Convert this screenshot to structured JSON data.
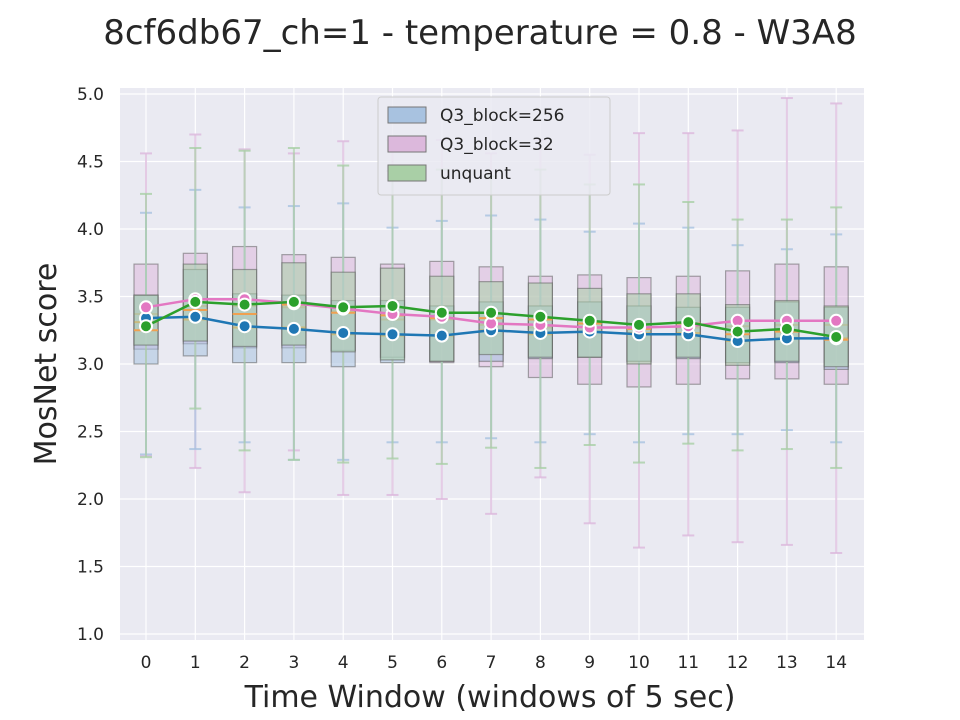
{
  "chart_data": {
    "type": "box",
    "title": "8cf6db67_ch=1 - temperature = 0.8 - W3A8",
    "xlabel": "Time Window (windows of 5 sec)",
    "ylabel": "MosNet score",
    "ylim": [
      1.0,
      5.0
    ],
    "yticks": [
      "1.0",
      "1.5",
      "2.0",
      "2.5",
      "3.0",
      "3.5",
      "4.0",
      "4.5",
      "5.0"
    ],
    "categories": [
      "0",
      "1",
      "2",
      "3",
      "4",
      "5",
      "6",
      "7",
      "8",
      "9",
      "10",
      "11",
      "12",
      "13",
      "14"
    ],
    "grid": true,
    "legend_position": "top-center",
    "series": [
      {
        "name": "Q3_block=256",
        "color": "#1f77b4",
        "box_color": "#a8c2e0",
        "means": [
          3.34,
          3.35,
          3.28,
          3.26,
          3.23,
          3.22,
          3.21,
          3.25,
          3.23,
          3.24,
          3.22,
          3.22,
          3.17,
          3.19,
          3.19
        ],
        "q1": [
          3.0,
          3.06,
          3.01,
          3.01,
          2.98,
          3.01,
          3.02,
          3.02,
          3.04,
          3.05,
          3.02,
          3.04,
          3.01,
          3.01,
          2.96
        ],
        "median": [
          3.31,
          3.33,
          3.27,
          3.27,
          3.22,
          3.21,
          3.21,
          3.25,
          3.22,
          3.24,
          3.23,
          3.23,
          3.17,
          3.19,
          3.19
        ],
        "q3": [
          3.51,
          3.7,
          3.52,
          3.51,
          3.47,
          3.47,
          3.43,
          3.46,
          3.43,
          3.46,
          3.43,
          3.42,
          3.42,
          3.46,
          3.42
        ],
        "whisker_low": [
          2.33,
          2.37,
          2.42,
          2.29,
          2.29,
          2.42,
          2.42,
          2.45,
          2.42,
          2.48,
          2.42,
          2.48,
          2.48,
          2.51,
          2.42
        ],
        "whisker_high": [
          4.12,
          4.29,
          4.16,
          4.17,
          4.19,
          4.01,
          4.06,
          4.1,
          4.07,
          3.98,
          4.04,
          4.01,
          3.88,
          3.85,
          3.96
        ]
      },
      {
        "name": "Q3_block=32",
        "color": "#e377c2",
        "box_color": "#dcb8dc",
        "means": [
          3.42,
          3.48,
          3.48,
          3.45,
          3.41,
          3.37,
          3.35,
          3.3,
          3.29,
          3.27,
          3.27,
          3.28,
          3.32,
          3.32,
          3.32
        ],
        "q1": [
          3.11,
          3.15,
          3.12,
          3.12,
          3.1,
          3.05,
          3.01,
          2.98,
          2.9,
          2.85,
          2.83,
          2.85,
          2.89,
          2.89,
          2.85
        ],
        "median": [
          3.37,
          3.43,
          3.43,
          3.42,
          3.39,
          3.33,
          3.33,
          3.29,
          3.27,
          3.24,
          3.26,
          3.27,
          3.28,
          3.29,
          3.29
        ],
        "q3": [
          3.74,
          3.82,
          3.87,
          3.81,
          3.79,
          3.74,
          3.76,
          3.72,
          3.65,
          3.66,
          3.64,
          3.65,
          3.69,
          3.74,
          3.72
        ],
        "whisker_low": [
          2.32,
          2.23,
          2.05,
          2.36,
          2.03,
          2.03,
          2.0,
          1.89,
          2.16,
          1.82,
          1.64,
          1.73,
          1.68,
          1.66,
          1.6
        ],
        "whisker_high": [
          4.56,
          4.7,
          4.59,
          4.56,
          4.65,
          4.66,
          4.66,
          4.56,
          4.66,
          4.55,
          4.71,
          4.71,
          4.73,
          4.97,
          4.93
        ]
      },
      {
        "name": "unquant",
        "color": "#2ca02c",
        "box_color": "#a9cfa6",
        "means": [
          3.28,
          3.46,
          3.44,
          3.46,
          3.42,
          3.43,
          3.38,
          3.38,
          3.35,
          3.32,
          3.29,
          3.31,
          3.24,
          3.26,
          3.2
        ],
        "q1": [
          3.14,
          3.17,
          3.13,
          3.14,
          3.09,
          3.03,
          3.02,
          3.07,
          3.05,
          3.05,
          3.0,
          3.05,
          2.99,
          3.02,
          2.98
        ],
        "median": [
          3.25,
          3.4,
          3.37,
          3.44,
          3.38,
          3.36,
          3.34,
          3.34,
          3.33,
          3.3,
          3.26,
          3.3,
          3.22,
          3.24,
          3.18
        ],
        "q3": [
          3.51,
          3.74,
          3.7,
          3.75,
          3.68,
          3.71,
          3.65,
          3.61,
          3.6,
          3.56,
          3.52,
          3.52,
          3.44,
          3.47,
          3.43
        ],
        "whisker_low": [
          2.31,
          2.67,
          2.36,
          2.29,
          2.27,
          2.3,
          2.26,
          2.38,
          2.23,
          2.4,
          2.27,
          2.41,
          2.36,
          2.37,
          2.23
        ],
        "whisker_high": [
          4.26,
          4.6,
          4.58,
          4.6,
          4.47,
          4.43,
          4.44,
          4.39,
          4.44,
          4.33,
          4.33,
          4.2,
          4.07,
          4.07,
          4.16
        ]
      }
    ]
  }
}
